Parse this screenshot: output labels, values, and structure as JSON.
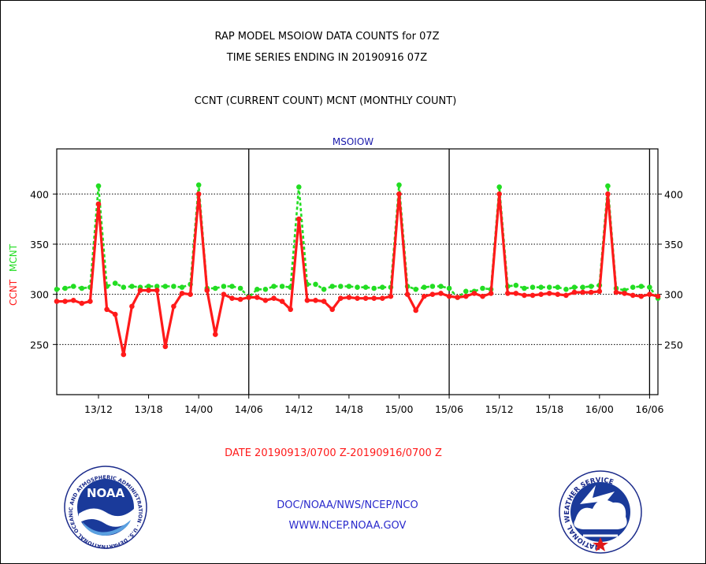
{
  "title_line1": "RAP MODEL MSOIOW DATA COUNTS for 07Z",
  "title_line2": "TIME SERIES ENDING IN 20190916 07Z",
  "subtitle": "CCNT (CURRENT COUNT) MCNT (MONTHLY COUNT)",
  "panel_label": "MSOIOW",
  "ylabel_ccnt": "CCNT",
  "ylabel_mcnt": "MCNT",
  "date_range": "DATE 20190913/0700 Z-20190916/0700 Z",
  "footer_org": "DOC/NOAA/NWS/NCEP/NCO",
  "footer_url": "WWW.NCEP.NOAA.GOV",
  "noaa_logo_text": "NOAA",
  "noaa_ring_text": "NATIONAL OCEANIC AND ATMOSPHERIC ADMINISTRATION · U.S. DEPARTMENT OF COMMERCE",
  "nws_ring_text": "NATIONAL WEATHER SERVICE",
  "colors": {
    "ccnt": "#ff1a1a",
    "mcnt": "#22dd22",
    "title_blue": "#1a1aaa",
    "footer_blue": "#2a2acc"
  },
  "chart_data": {
    "type": "line",
    "xlabels": [
      "13/12",
      "13/18",
      "14/00",
      "14/06",
      "14/12",
      "14/18",
      "15/00",
      "15/06",
      "15/12",
      "15/18",
      "16/00",
      "16/06"
    ],
    "x_start_hour": 7,
    "x_end_hour": 79,
    "ylim": [
      200,
      445
    ],
    "yticks": [
      250,
      300,
      350,
      400
    ],
    "grid": true,
    "day_separators_hour": [
      30,
      54,
      78
    ],
    "series": [
      {
        "name": "CCNT",
        "color": "#ff1a1a",
        "start_hour": 7,
        "values": [
          293,
          293,
          294,
          291,
          293,
          390,
          285,
          280,
          240,
          288,
          304,
          304,
          304,
          248,
          288,
          301,
          300,
          400,
          304,
          260,
          300,
          296,
          295,
          297,
          297,
          294,
          296,
          293,
          285,
          375,
          294,
          294,
          293,
          285,
          296,
          297,
          296,
          296,
          296,
          296,
          298,
          400,
          300,
          284,
          298,
          300,
          301,
          298,
          297,
          298,
          301,
          298,
          301,
          400,
          301,
          301,
          299,
          299,
          300,
          301,
          300,
          299,
          302,
          302,
          302,
          303,
          400,
          302,
          301,
          299,
          298,
          300,
          298
        ]
      },
      {
        "name": "MCNT",
        "color": "#22dd22",
        "start_hour": 7,
        "values": [
          305,
          306,
          308,
          306,
          307,
          408,
          308,
          311,
          307,
          308,
          307,
          308,
          308,
          308,
          308,
          307,
          310,
          409,
          306,
          306,
          308,
          308,
          306,
          297,
          305,
          305,
          308,
          308,
          307,
          407,
          310,
          310,
          305,
          308,
          308,
          308,
          307,
          307,
          306,
          307,
          307,
          409,
          308,
          305,
          307,
          308,
          308,
          306,
          297,
          303,
          303,
          306,
          305,
          407,
          308,
          309,
          306,
          307,
          307,
          307,
          307,
          305,
          307,
          307,
          308,
          309,
          408,
          306,
          304,
          307,
          308,
          307,
          296
        ]
      }
    ]
  }
}
